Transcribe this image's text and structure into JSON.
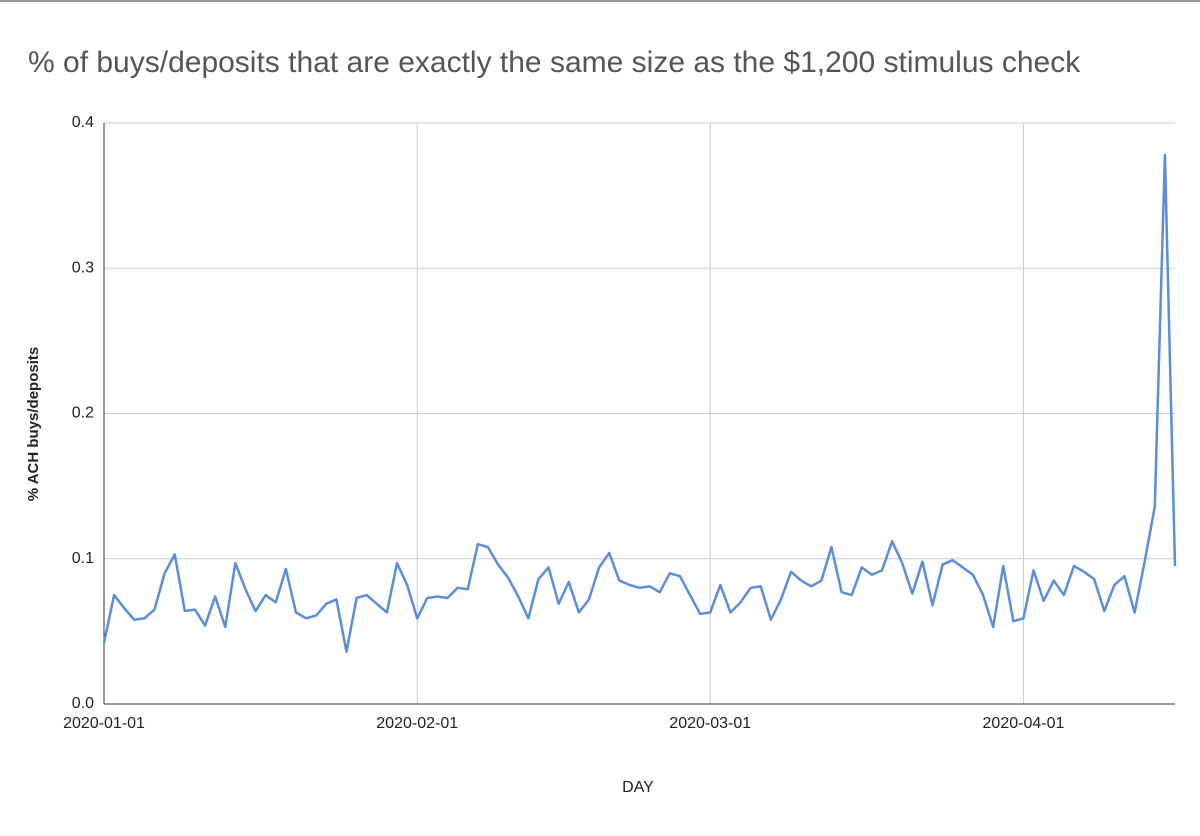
{
  "chart_data": {
    "type": "line",
    "title": "% of buys/deposits that are exactly the same size as the $1,200 stimulus check",
    "xlabel": "DAY",
    "ylabel": "% ACH buys/deposits",
    "x": [
      "2020-01-01",
      "2020-01-02",
      "2020-01-03",
      "2020-01-04",
      "2020-01-05",
      "2020-01-06",
      "2020-01-07",
      "2020-01-08",
      "2020-01-09",
      "2020-01-10",
      "2020-01-11",
      "2020-01-12",
      "2020-01-13",
      "2020-01-14",
      "2020-01-15",
      "2020-01-16",
      "2020-01-17",
      "2020-01-18",
      "2020-01-19",
      "2020-01-20",
      "2020-01-21",
      "2020-01-22",
      "2020-01-23",
      "2020-01-24",
      "2020-01-25",
      "2020-01-26",
      "2020-01-27",
      "2020-01-28",
      "2020-01-29",
      "2020-01-30",
      "2020-01-31",
      "2020-02-01",
      "2020-02-02",
      "2020-02-03",
      "2020-02-04",
      "2020-02-05",
      "2020-02-06",
      "2020-02-07",
      "2020-02-08",
      "2020-02-09",
      "2020-02-10",
      "2020-02-11",
      "2020-02-12",
      "2020-02-13",
      "2020-02-14",
      "2020-02-15",
      "2020-02-16",
      "2020-02-17",
      "2020-02-18",
      "2020-02-19",
      "2020-02-20",
      "2020-02-21",
      "2020-02-22",
      "2020-02-23",
      "2020-02-24",
      "2020-02-25",
      "2020-02-26",
      "2020-02-27",
      "2020-02-28",
      "2020-02-29",
      "2020-03-01",
      "2020-03-02",
      "2020-03-03",
      "2020-03-04",
      "2020-03-05",
      "2020-03-06",
      "2020-03-07",
      "2020-03-08",
      "2020-03-09",
      "2020-03-10",
      "2020-03-11",
      "2020-03-12",
      "2020-03-13",
      "2020-03-14",
      "2020-03-15",
      "2020-03-16",
      "2020-03-17",
      "2020-03-18",
      "2020-03-19",
      "2020-03-20",
      "2020-03-21",
      "2020-03-22",
      "2020-03-23",
      "2020-03-24",
      "2020-03-25",
      "2020-03-26",
      "2020-03-27",
      "2020-03-28",
      "2020-03-29",
      "2020-03-30",
      "2020-03-31",
      "2020-04-01",
      "2020-04-02",
      "2020-04-03",
      "2020-04-04",
      "2020-04-05",
      "2020-04-06",
      "2020-04-07",
      "2020-04-08",
      "2020-04-09",
      "2020-04-10",
      "2020-04-11",
      "2020-04-12",
      "2020-04-13",
      "2020-04-14",
      "2020-04-15",
      "2020-04-16"
    ],
    "series": [
      {
        "color": "#5b8ddb",
        "values": [
          0.042,
          0.075,
          0.066,
          0.058,
          0.059,
          0.065,
          0.09,
          0.103,
          0.064,
          0.065,
          0.054,
          0.074,
          0.053,
          0.097,
          0.079,
          0.064,
          0.075,
          0.07,
          0.093,
          0.063,
          0.059,
          0.061,
          0.069,
          0.072,
          0.036,
          0.073,
          0.075,
          0.069,
          0.063,
          0.097,
          0.082,
          0.059,
          0.073,
          0.074,
          0.073,
          0.08,
          0.079,
          0.11,
          0.108,
          0.096,
          0.087,
          0.074,
          0.059,
          0.086,
          0.094,
          0.069,
          0.084,
          0.063,
          0.072,
          0.094,
          0.104,
          0.085,
          0.082,
          0.08,
          0.081,
          0.077,
          0.09,
          0.088,
          0.075,
          0.062,
          0.063,
          0.082,
          0.063,
          0.07,
          0.08,
          0.081,
          0.058,
          0.072,
          0.091,
          0.085,
          0.081,
          0.085,
          0.108,
          0.077,
          0.075,
          0.094,
          0.089,
          0.092,
          0.112,
          0.097,
          0.076,
          0.098,
          0.068,
          0.096,
          0.099,
          0.094,
          0.089,
          0.075,
          0.053,
          0.095,
          0.057,
          0.059,
          0.092,
          0.071,
          0.085,
          0.075,
          0.095,
          0.091,
          0.086,
          0.064,
          0.082,
          0.088,
          0.063,
          0.098,
          0.136,
          0.378,
          0.095
        ]
      }
    ],
    "xlim": [
      "2020-01-01",
      "2020-04-16"
    ],
    "xticks": [
      "2020-01-01",
      "2020-02-01",
      "2020-03-01",
      "2020-04-01"
    ],
    "ylim": [
      0,
      0.4
    ],
    "yticks": [
      {
        "value": 0,
        "label": "0.0"
      },
      0.1,
      0.2,
      0.3,
      0.4
    ],
    "grid": true
  }
}
